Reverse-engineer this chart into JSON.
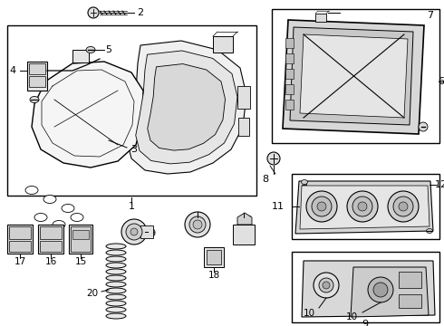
{
  "bg_color": "#ffffff",
  "line_color": "#000000",
  "gray1": "#e8e8e8",
  "gray2": "#d0d0d0",
  "gray3": "#aaaaaa"
}
